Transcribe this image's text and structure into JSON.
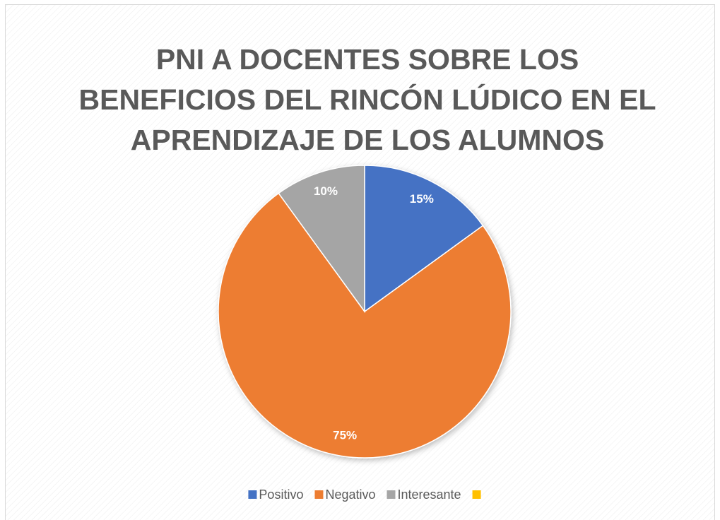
{
  "chart_data": {
    "type": "pie",
    "title": "PNI A DOCENTES SOBRE LOS BENEFICIOS DEL RINCÓN LÚDICO EN EL APRENDIZAJE DE LOS ALUMNOS",
    "categories": [
      "Positivo",
      "Negativo",
      "Interesante",
      null
    ],
    "values": [
      15,
      75,
      10,
      null
    ],
    "value_labels": [
      "15%",
      "75%",
      "10%",
      null
    ],
    "colors": [
      "#4472c4",
      "#ed7d31",
      "#a5a5a5",
      "#ffc000"
    ],
    "legend": "bottom"
  }
}
